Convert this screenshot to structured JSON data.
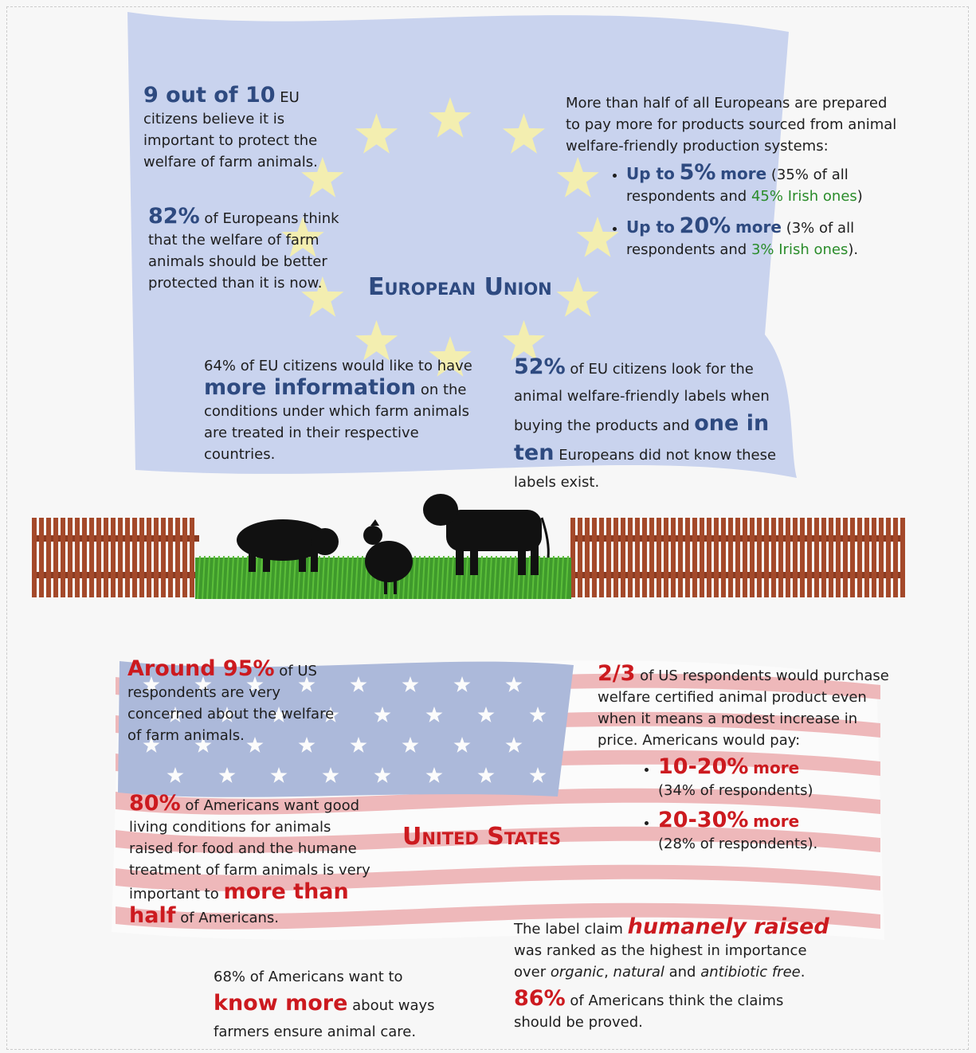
{
  "eu": {
    "title": "European Union",
    "stat1": [
      "9 out of 10",
      "EU",
      "citizens believe it is important to protect the welfare of farm animals."
    ],
    "stat2": [
      "82%",
      "of Europeans think that the welfare of farm animals should be better protected than it is now."
    ],
    "stat3": {
      "intro": "More than half of all Europeans are prepared to pay more for products sourced from animal welfare-friendly production systems:",
      "bullets": [
        {
          "lead": "Up to",
          "pct": "5%",
          "more": "more",
          "detail": "(35% of all respondents and",
          "irish": "45% Irish ones",
          "close": ")"
        },
        {
          "lead": "Up to",
          "pct": "20%",
          "more": "more",
          "detail": "(3% of all respondents and",
          "irish": "3% Irish ones",
          "close": ")."
        }
      ]
    },
    "stat4": [
      "64% of EU citizens would like to have",
      "more information",
      "on the conditions under which farm animals are treated in their respective countries."
    ],
    "stat5": [
      "52%",
      "of EU citizens look for the animal welfare-friendly labels when buying the products and",
      "one in ten",
      "Europeans did not know these labels exist."
    ]
  },
  "us": {
    "title": "United States",
    "stat1": [
      "Around 95%",
      "of US respondents are very concerned about the welfare of farm animals."
    ],
    "stat2": [
      "80%",
      "of Americans want good living conditions for animals raised for food and the humane treatment of farm animals is very important to",
      "more than half",
      "of Americans."
    ],
    "stat3": [
      "68% of Americans want to",
      "know more",
      "about ways farmers ensure animal care."
    ],
    "stat4": {
      "intro": [
        "2/3",
        "of US respondents would purchase welfare certified animal product even when it means a modest increase in price. Americans would pay:"
      ],
      "bullets": [
        {
          "range": "10-20%",
          "more": "more",
          "detail": "(34% of respondents)"
        },
        {
          "range": "20-30%",
          "more": "more",
          "detail": "(28% of respondents)."
        }
      ]
    },
    "stat5": [
      "The label claim",
      "humanely raised",
      "was ranked as the highest in importance over",
      "organic",
      ",",
      "natural",
      "and",
      "antibiotic free",
      "."
    ],
    "stat6": [
      "86%",
      "of Americans think the claims should be proved."
    ]
  }
}
